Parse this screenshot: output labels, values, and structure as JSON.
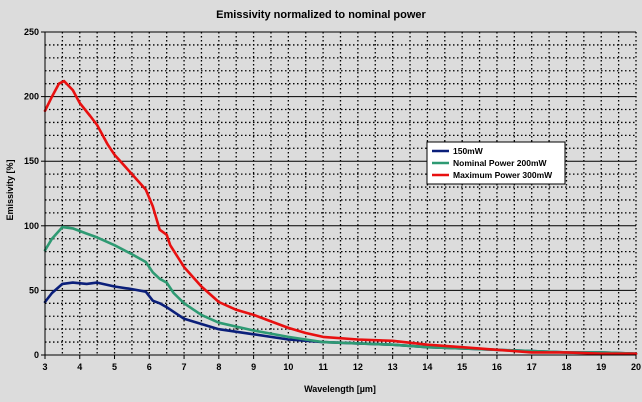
{
  "chart_data": {
    "type": "line",
    "title": "Emissivity normalized to nominal power",
    "xlabel": "Wavelength [µm]",
    "ylabel": "Emissivity [%]",
    "xlim": [
      3,
      20
    ],
    "ylim": [
      0,
      250
    ],
    "x_ticks": [
      "3",
      "4",
      "5",
      "6",
      "7",
      "8",
      "9",
      "10",
      "11",
      "12",
      "13",
      "14",
      "15",
      "16",
      "17",
      "18",
      "19",
      "20"
    ],
    "y_ticks": [
      "0",
      "50",
      "100",
      "150",
      "200",
      "250"
    ],
    "grid": true,
    "legend_position": "right",
    "background_color": "#dcdcdc",
    "series": [
      {
        "name": "150mW",
        "color": "#0b1f7a",
        "points": [
          [
            3.0,
            41
          ],
          [
            3.2,
            48
          ],
          [
            3.5,
            55
          ],
          [
            3.8,
            56
          ],
          [
            4.2,
            55
          ],
          [
            4.5,
            56
          ],
          [
            5.0,
            53
          ],
          [
            5.5,
            51
          ],
          [
            5.9,
            49
          ],
          [
            6.1,
            42
          ],
          [
            6.3,
            40
          ],
          [
            6.5,
            37
          ],
          [
            7.0,
            28
          ],
          [
            7.5,
            24
          ],
          [
            8.0,
            20
          ],
          [
            9.0,
            16
          ],
          [
            10.0,
            12
          ],
          [
            11.0,
            10
          ],
          [
            12.0,
            9
          ],
          [
            13.0,
            8
          ],
          [
            14.0,
            6
          ],
          [
            15.0,
            5
          ],
          [
            16.0,
            4
          ],
          [
            17.0,
            3
          ],
          [
            18.0,
            2
          ],
          [
            19.0,
            2
          ],
          [
            20.0,
            1
          ]
        ]
      },
      {
        "name": "Nominal Power 200mW",
        "color": "#2e9a73",
        "points": [
          [
            3.0,
            81
          ],
          [
            3.2,
            90
          ],
          [
            3.5,
            99
          ],
          [
            3.8,
            98
          ],
          [
            4.2,
            94
          ],
          [
            4.5,
            91
          ],
          [
            5.0,
            85
          ],
          [
            5.5,
            78
          ],
          [
            5.9,
            72
          ],
          [
            6.1,
            64
          ],
          [
            6.3,
            59
          ],
          [
            6.5,
            56
          ],
          [
            6.7,
            48
          ],
          [
            7.0,
            40
          ],
          [
            7.5,
            31
          ],
          [
            8.0,
            25
          ],
          [
            9.0,
            19
          ],
          [
            10.0,
            14
          ],
          [
            11.0,
            10
          ],
          [
            12.0,
            9
          ],
          [
            13.0,
            8
          ],
          [
            14.0,
            6
          ],
          [
            15.0,
            5
          ],
          [
            16.0,
            4
          ],
          [
            17.0,
            3
          ],
          [
            18.0,
            2
          ],
          [
            19.0,
            2
          ],
          [
            20.0,
            1
          ]
        ]
      },
      {
        "name": "Maximum Power 300mW",
        "color": "#e81010",
        "points": [
          [
            3.0,
            189
          ],
          [
            3.2,
            200
          ],
          [
            3.4,
            210
          ],
          [
            3.55,
            212
          ],
          [
            3.8,
            205
          ],
          [
            4.0,
            195
          ],
          [
            4.3,
            185
          ],
          [
            4.5,
            178
          ],
          [
            4.8,
            163
          ],
          [
            5.0,
            155
          ],
          [
            5.5,
            140
          ],
          [
            5.9,
            128
          ],
          [
            6.1,
            115
          ],
          [
            6.3,
            97
          ],
          [
            6.5,
            93
          ],
          [
            6.6,
            85
          ],
          [
            7.0,
            68
          ],
          [
            7.5,
            53
          ],
          [
            8.0,
            41
          ],
          [
            8.5,
            35
          ],
          [
            9.0,
            31
          ],
          [
            9.5,
            26
          ],
          [
            10.0,
            21
          ],
          [
            10.5,
            17
          ],
          [
            11.0,
            14
          ],
          [
            12.0,
            12
          ],
          [
            13.0,
            11
          ],
          [
            14.0,
            8
          ],
          [
            15.0,
            6
          ],
          [
            16.0,
            4
          ],
          [
            17.0,
            2
          ],
          [
            18.0,
            2
          ],
          [
            19.0,
            1
          ],
          [
            20.0,
            1
          ]
        ]
      }
    ]
  }
}
